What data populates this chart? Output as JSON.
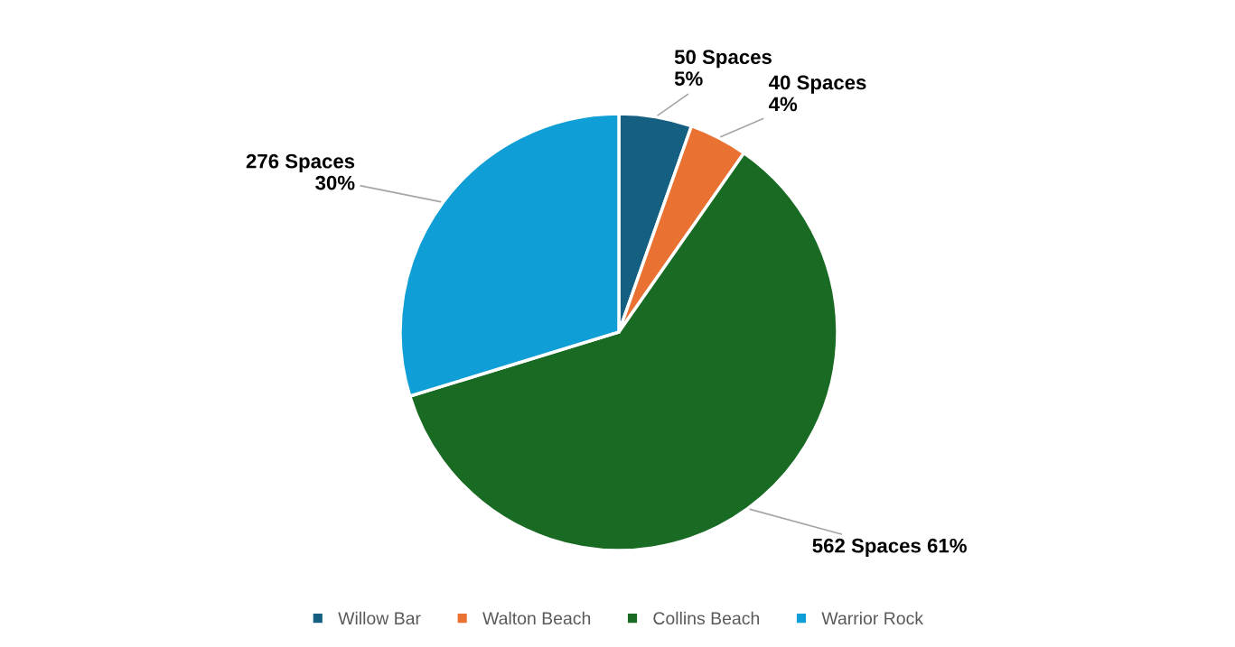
{
  "chart_data": {
    "type": "pie",
    "categories": [
      "Willow Bar",
      "Walton Beach",
      "Collins Beach",
      "Warrior Rock"
    ],
    "values": [
      50,
      40,
      562,
      276
    ],
    "colors": [
      "#156082",
      "#e97132",
      "#196b24",
      "#0f9ed5"
    ],
    "value_labels": [
      "50 Spaces\n5%",
      "40 Spaces\n4%",
      "562 Spaces 61%",
      "276 Spaces\n30%"
    ],
    "legend": "bottom"
  }
}
